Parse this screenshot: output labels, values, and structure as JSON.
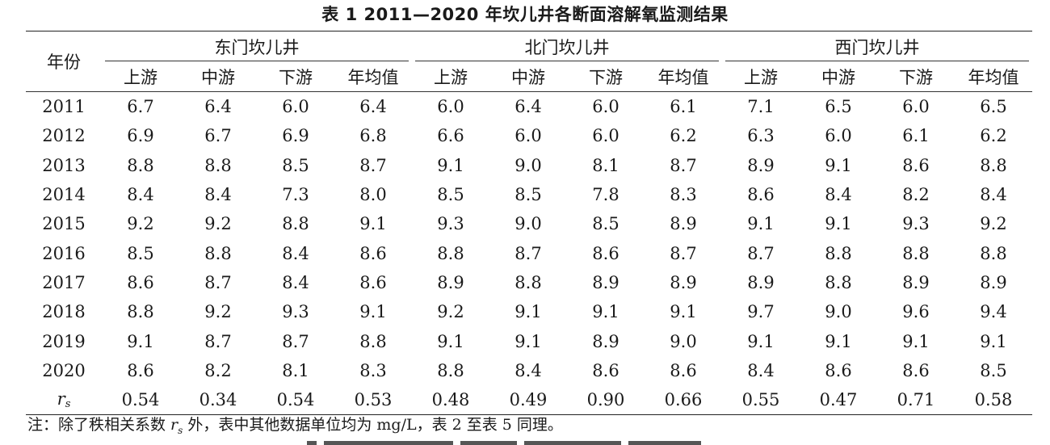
{
  "caption": "表 1   2011—2020 年坎儿井各断面溶解氧监测结果",
  "header": {
    "year_col": "年份",
    "groups": [
      "东门坎儿井",
      "北门坎儿井",
      "西门坎儿井"
    ],
    "subs": [
      "上游",
      "中游",
      "下游",
      "年均值"
    ]
  },
  "rows": [
    {
      "year": "2011",
      "values": [
        "6.7",
        "6.4",
        "6.0",
        "6.4",
        "6.0",
        "6.4",
        "6.0",
        "6.1",
        "7.1",
        "6.5",
        "6.0",
        "6.5"
      ]
    },
    {
      "year": "2012",
      "values": [
        "6.9",
        "6.7",
        "6.9",
        "6.8",
        "6.6",
        "6.0",
        "6.0",
        "6.2",
        "6.3",
        "6.0",
        "6.1",
        "6.2"
      ]
    },
    {
      "year": "2013",
      "values": [
        "8.8",
        "8.8",
        "8.5",
        "8.7",
        "9.1",
        "9.0",
        "8.1",
        "8.7",
        "8.9",
        "9.1",
        "8.6",
        "8.8"
      ]
    },
    {
      "year": "2014",
      "values": [
        "8.4",
        "8.4",
        "7.3",
        "8.0",
        "8.5",
        "8.5",
        "7.8",
        "8.3",
        "8.6",
        "8.4",
        "8.2",
        "8.4"
      ]
    },
    {
      "year": "2015",
      "values": [
        "9.2",
        "9.2",
        "8.8",
        "9.1",
        "9.3",
        "9.0",
        "8.5",
        "8.9",
        "9.1",
        "9.1",
        "9.3",
        "9.2"
      ]
    },
    {
      "year": "2016",
      "values": [
        "8.5",
        "8.8",
        "8.4",
        "8.6",
        "8.8",
        "8.7",
        "8.6",
        "8.7",
        "8.7",
        "8.8",
        "8.8",
        "8.8"
      ]
    },
    {
      "year": "2017",
      "values": [
        "8.6",
        "8.7",
        "8.4",
        "8.6",
        "8.9",
        "8.8",
        "8.9",
        "8.9",
        "8.9",
        "8.8",
        "8.9",
        "8.9"
      ]
    },
    {
      "year": "2018",
      "values": [
        "8.8",
        "9.2",
        "9.3",
        "9.1",
        "9.2",
        "9.1",
        "9.1",
        "9.1",
        "9.7",
        "9.0",
        "9.6",
        "9.4"
      ]
    },
    {
      "year": "2019",
      "values": [
        "9.1",
        "8.7",
        "8.7",
        "8.8",
        "9.1",
        "9.1",
        "8.9",
        "9.0",
        "9.1",
        "9.1",
        "9.1",
        "9.1"
      ]
    },
    {
      "year": "2020",
      "values": [
        "8.6",
        "8.2",
        "8.1",
        "8.3",
        "8.8",
        "8.4",
        "8.6",
        "8.6",
        "8.4",
        "8.6",
        "8.6",
        "8.5"
      ]
    }
  ],
  "rs_row": {
    "label_main": "r",
    "label_sub": "s",
    "values": [
      "0.54",
      "0.34",
      "0.54",
      "0.53",
      "0.48",
      "0.49",
      "0.90",
      "0.66",
      "0.55",
      "0.47",
      "0.71",
      "0.58"
    ]
  },
  "note": {
    "prefix": "注：除了秩相关系数 ",
    "sym_main": "r",
    "sym_sub": "s",
    "suffix": " 外，表中其他数据单位均为 mg/L，表 2 至表 5 同理。"
  }
}
